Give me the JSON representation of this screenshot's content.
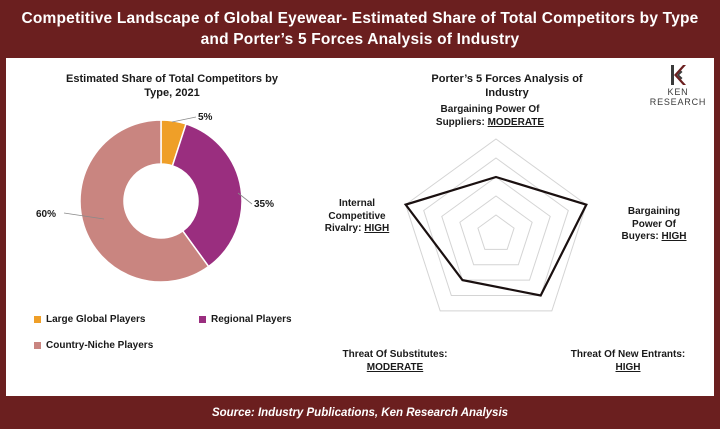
{
  "header": {
    "title_line1": "Competitive Landscape of Global Eyewear- Estimated Share of Total Competitors by Type",
    "title_line2": "and Porter’s 5 Forces Analysis of Industry"
  },
  "footer": {
    "source": "Source: Industry Publications, Ken Research Analysis"
  },
  "logo": {
    "text": "KEN RESEARCH"
  },
  "colors": {
    "frame": "#6b1f1f",
    "large_global": "#ef9f28",
    "regional": "#9a2e7f",
    "country_niche": "#c98580",
    "radar_line": "#1a1010",
    "grid": "#d4d4d4"
  },
  "chart_data": [
    {
      "type": "pie",
      "title_line1": "Estimated Share of Total Competitors by",
      "title_line2": "Type, 2021",
      "categories": [
        "Large Global Players",
        "Regional Players",
        "Country-Niche Players"
      ],
      "values": [
        5,
        35,
        60
      ],
      "value_labels": [
        "5%",
        "35%",
        "60%"
      ],
      "donut": true,
      "legend": "bottom"
    },
    {
      "type": "radar",
      "title_line1": "Porter’s 5 Forces Analysis of",
      "title_line2": "Industry",
      "axes": [
        {
          "name_l1": "Bargaining Power Of",
          "name_l2": "Suppliers:",
          "rating": "MODERATE",
          "level": 3
        },
        {
          "name_l1": "Bargaining",
          "name_l2": "Power Of",
          "name_l3": "Buyers:",
          "rating": "HIGH",
          "level": 5
        },
        {
          "name_l1": "Threat Of New Entrants:",
          "rating": "HIGH",
          "level": 4
        },
        {
          "name_l1": "Threat Of Substitutes:",
          "rating": "MODERATE",
          "level": 3
        },
        {
          "name_l1": "Internal",
          "name_l2": "Competitive",
          "name_l3": "Rivalry:",
          "rating": "HIGH",
          "level": 5
        }
      ],
      "max_level": 5,
      "grid": true
    }
  ]
}
